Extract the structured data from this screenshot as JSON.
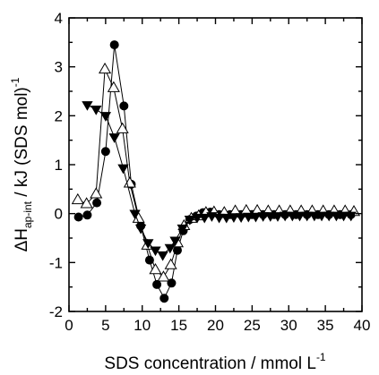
{
  "chart_data": {
    "type": "line",
    "xlabel": "SDS concentration / mmol L",
    "xlabel_sup": "-1",
    "ylabel": {
      "delta": "ΔH",
      "sub": "ap-int",
      "rest": " / kJ (SDS mol)",
      "sup": "-1"
    },
    "xlim": [
      0,
      40
    ],
    "ylim": [
      -2,
      4
    ],
    "xticks": [
      "0",
      "5",
      "10",
      "15",
      "20",
      "25",
      "30",
      "35",
      "40"
    ],
    "yticks": [
      "-2",
      "-1",
      "0",
      "1",
      "2",
      "3",
      "4"
    ],
    "grid": false,
    "legend": "none",
    "series": [
      {
        "marker": "filled-circle",
        "color": "#000000",
        "points": [
          [
            1.3,
            -0.07
          ],
          [
            2.5,
            -0.03
          ],
          [
            3.8,
            0.22
          ],
          [
            5.0,
            1.27
          ],
          [
            6.2,
            3.45
          ],
          [
            7.5,
            2.2
          ],
          [
            8.5,
            0.6
          ],
          [
            9.8,
            -0.25
          ],
          [
            11.0,
            -0.95
          ],
          [
            12.0,
            -1.45
          ],
          [
            13.0,
            -1.73
          ],
          [
            14.0,
            -1.42
          ],
          [
            14.8,
            -0.75
          ],
          [
            15.6,
            -0.35
          ],
          [
            16.5,
            -0.12
          ],
          [
            17.4,
            -0.05
          ],
          [
            18.3,
            0.02
          ],
          [
            19.3,
            0.03
          ],
          [
            20.5,
            -0.02
          ],
          [
            22.0,
            -0.02
          ],
          [
            23.5,
            -0.02
          ],
          [
            25.0,
            -0.02
          ],
          [
            26.5,
            -0.02
          ],
          [
            28.0,
            -0.02
          ],
          [
            29.5,
            -0.02
          ],
          [
            31.0,
            -0.02
          ],
          [
            32.5,
            -0.02
          ],
          [
            34.0,
            -0.02
          ],
          [
            35.5,
            -0.02
          ],
          [
            37.0,
            -0.02
          ],
          [
            38.5,
            -0.02
          ]
        ]
      },
      {
        "marker": "open-triangle-up",
        "color": "#000000",
        "points": [
          [
            1.2,
            0.28
          ],
          [
            2.4,
            0.2
          ],
          [
            3.7,
            0.4
          ],
          [
            4.9,
            2.95
          ],
          [
            6.1,
            2.57
          ],
          [
            7.3,
            1.73
          ],
          [
            8.3,
            0.62
          ],
          [
            9.5,
            -0.1
          ],
          [
            10.7,
            -0.65
          ],
          [
            11.8,
            -1.15
          ],
          [
            12.9,
            -1.3
          ],
          [
            13.9,
            -1.05
          ],
          [
            14.8,
            -0.6
          ],
          [
            15.7,
            -0.25
          ],
          [
            16.7,
            -0.1
          ],
          [
            17.7,
            -0.05
          ],
          [
            18.7,
            0.02
          ],
          [
            19.8,
            0.03
          ],
          [
            21.2,
            0.02
          ],
          [
            22.7,
            0.05
          ],
          [
            24.2,
            0.06
          ],
          [
            25.7,
            0.06
          ],
          [
            27.2,
            0.05
          ],
          [
            28.7,
            0.05
          ],
          [
            30.2,
            0.05
          ],
          [
            31.7,
            0.05
          ],
          [
            33.2,
            0.05
          ],
          [
            34.7,
            0.05
          ],
          [
            36.2,
            0.05
          ],
          [
            37.7,
            0.05
          ],
          [
            38.9,
            0.04
          ]
        ]
      },
      {
        "marker": "filled-triangle-down",
        "color": "#000000",
        "points": [
          [
            2.5,
            2.22
          ],
          [
            3.7,
            2.13
          ],
          [
            5.0,
            2.0
          ],
          [
            6.2,
            1.56
          ],
          [
            7.4,
            0.93
          ],
          [
            9.0,
            0.0
          ],
          [
            9.8,
            -0.3
          ],
          [
            10.8,
            -0.6
          ],
          [
            11.8,
            -0.75
          ],
          [
            12.8,
            -0.85
          ],
          [
            13.8,
            -0.7
          ],
          [
            14.5,
            -0.55
          ],
          [
            15.5,
            -0.3
          ],
          [
            16.5,
            -0.12
          ],
          [
            17.5,
            -0.08
          ],
          [
            18.5,
            -0.08
          ],
          [
            19.5,
            -0.05
          ],
          [
            20.5,
            -0.08
          ],
          [
            21.5,
            -0.08
          ],
          [
            22.5,
            -0.07
          ],
          [
            23.5,
            -0.07
          ],
          [
            24.5,
            -0.06
          ],
          [
            25.5,
            -0.06
          ],
          [
            26.5,
            -0.05
          ],
          [
            27.5,
            -0.05
          ],
          [
            28.5,
            -0.05
          ],
          [
            29.5,
            -0.04
          ],
          [
            30.5,
            -0.04
          ],
          [
            31.5,
            -0.04
          ],
          [
            32.5,
            -0.04
          ],
          [
            33.5,
            -0.04
          ],
          [
            34.5,
            -0.04
          ],
          [
            35.5,
            -0.04
          ],
          [
            36.5,
            -0.04
          ],
          [
            37.5,
            -0.04
          ],
          [
            38.5,
            -0.04
          ]
        ]
      }
    ]
  }
}
